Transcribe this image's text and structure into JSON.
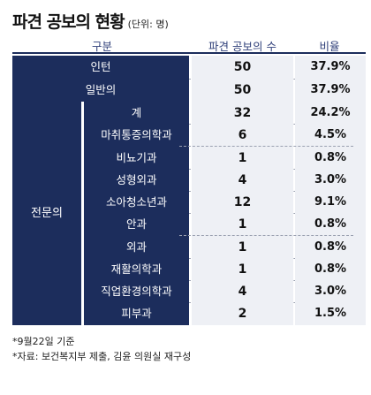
{
  "title": {
    "main": "파견 공보의 현황",
    "unit": "(단위: 명)"
  },
  "columns": {
    "category": "구분",
    "count": "파견 공보의 수",
    "ratio": "비율"
  },
  "top_rows": [
    {
      "label": "인턴",
      "count": "50",
      "ratio": "37.9%"
    },
    {
      "label": "일반의",
      "count": "50",
      "ratio": "37.9%"
    }
  ],
  "group_label": "전문의",
  "sub_rows": [
    {
      "label": "계",
      "count": "32",
      "ratio": "24.2%"
    },
    {
      "label": "마취통증의학과",
      "count": "6",
      "ratio": "4.5%"
    },
    {
      "label": "비뇨기과",
      "count": "1",
      "ratio": "0.8%"
    },
    {
      "label": "성형외과",
      "count": "4",
      "ratio": "3.0%"
    },
    {
      "label": "소아청소년과",
      "count": "12",
      "ratio": "9.1%"
    },
    {
      "label": "안과",
      "count": "1",
      "ratio": "0.8%"
    },
    {
      "label": "외과",
      "count": "1",
      "ratio": "0.8%"
    },
    {
      "label": "재활의학과",
      "count": "1",
      "ratio": "0.8%"
    },
    {
      "label": "직업환경의학과",
      "count": "4",
      "ratio": "3.0%"
    },
    {
      "label": "피부과",
      "count": "2",
      "ratio": "1.5%"
    }
  ],
  "notes": {
    "line1": "*9월22일 기준",
    "line2": "*자료: 보건복지부 제출, 김윤 의원실 재구성"
  }
}
